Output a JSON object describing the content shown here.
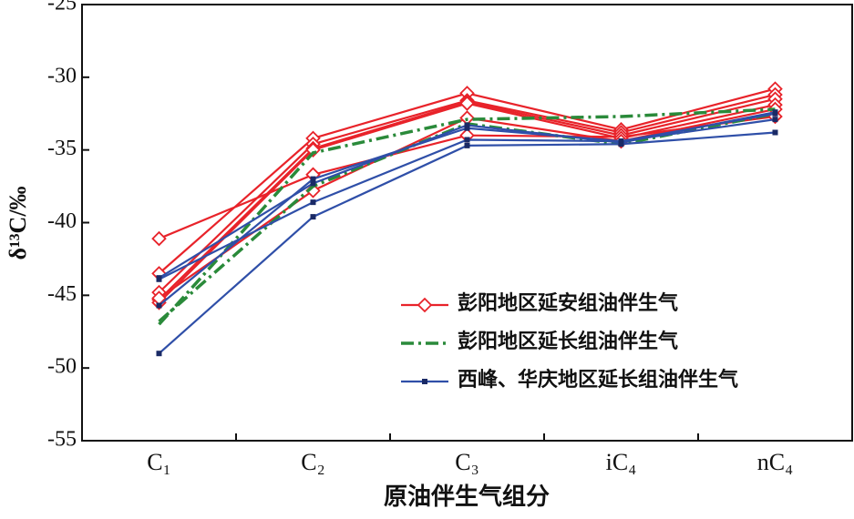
{
  "chart_data": {
    "type": "line",
    "x_label": "原油伴生气组分",
    "y_label": "δ¹³C/‰",
    "categories": [
      "C₁",
      "C₂",
      "C₃",
      "iC₄",
      "nC₄"
    ],
    "ylim": [
      -55,
      -25
    ],
    "yticks": [
      -55,
      -50,
      -45,
      -40,
      -35,
      -30,
      -25
    ],
    "legend": "lower right",
    "series": [
      {
        "name": "彭阳地区延安组油伴生气",
        "color": "#e8232a",
        "dash": "solid",
        "marker": "diamond",
        "lines": [
          [
            -41.1,
            -36.7,
            -34.0,
            -34.1,
            -32.7
          ],
          [
            -43.5,
            -34.2,
            -31.1,
            -33.6,
            -30.8
          ],
          [
            -44.8,
            -34.6,
            -31.6,
            -33.8,
            -31.2
          ],
          [
            -45.3,
            -34.9,
            -31.7,
            -34.0,
            -31.5
          ],
          [
            -45.5,
            -35.0,
            -31.8,
            -34.2,
            -31.9
          ],
          [
            -45.2,
            -37.8,
            -32.8,
            -34.4,
            -32.2
          ]
        ]
      },
      {
        "name": "彭阳地区延长组油伴生气",
        "color": "#2a8a3a",
        "dash": "dashdot",
        "marker": "none",
        "lines": [
          [
            -47.0,
            -35.2,
            -32.9,
            -32.7,
            -32.2
          ],
          [
            -46.8,
            -37.5,
            -33.2,
            -34.6,
            -32.5
          ]
        ]
      },
      {
        "name": "西峰、华庆地区延长组油伴生气",
        "color": "#2f4fa8",
        "dash": "solid",
        "marker": "square",
        "lines": [
          [
            -43.8,
            -37.3,
            -33.3,
            -34.5,
            -32.4
          ],
          [
            -45.7,
            -37.0,
            -33.5,
            -34.4,
            -32.9
          ],
          [
            -49.0,
            -39.6,
            -34.7,
            -34.6,
            -33.8
          ],
          [
            -43.9,
            -38.6,
            -34.3,
            -34.4,
            -32.5
          ]
        ]
      }
    ]
  }
}
